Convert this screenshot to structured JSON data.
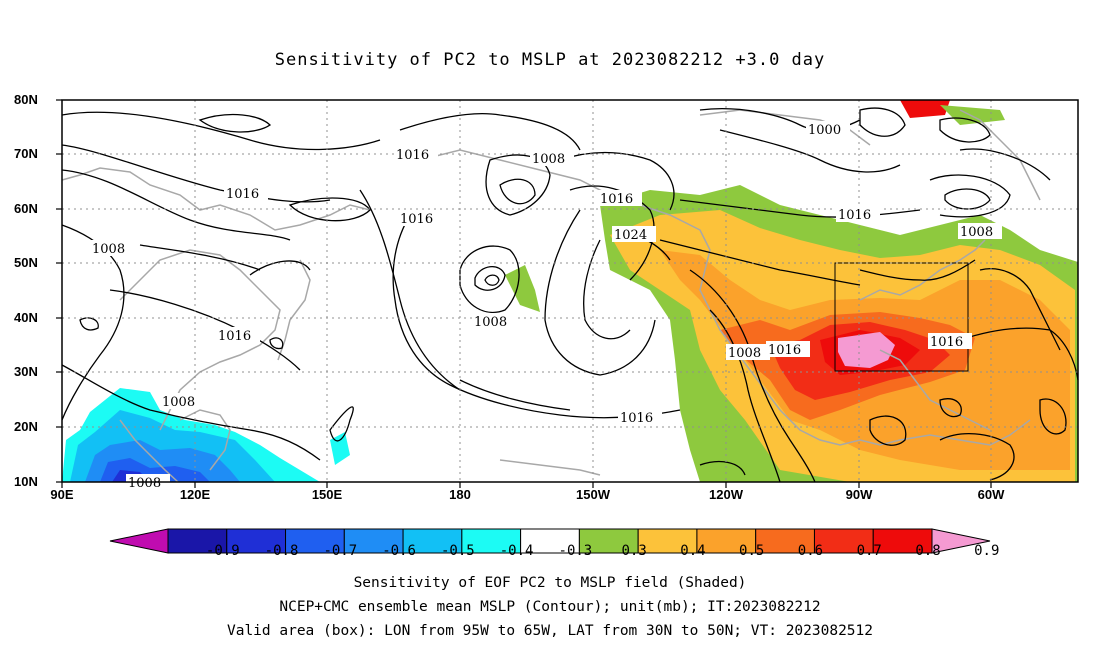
{
  "title": "Sensitivity of PC2 to MSLP at 2023082212 +3.0 day",
  "lat_labels": [
    "80N",
    "70N",
    "60N",
    "50N",
    "40N",
    "30N",
    "20N",
    "10N"
  ],
  "lon_labels": [
    "90E",
    "120E",
    "150E",
    "180",
    "150W",
    "120W",
    "90W",
    "60W"
  ],
  "contour_labels": [
    "1016",
    "1008",
    "1016",
    "1016",
    "1008",
    "1016",
    "1016",
    "1000",
    "1024",
    "1016",
    "1008",
    "1008",
    "1008",
    "1008",
    "1016",
    "1016",
    "1016",
    "1008",
    "1008"
  ],
  "colorbar": {
    "labels": [
      "-0.9",
      "-0.8",
      "-0.7",
      "-0.6",
      "-0.5",
      "-0.4",
      "-0.3",
      "0.3",
      "0.4",
      "0.5",
      "0.6",
      "0.7",
      "0.8",
      "0.9"
    ],
    "colors": [
      "#c00cb0",
      "#1a16a8",
      "#1f2fd6",
      "#1f5ff0",
      "#1f8df5",
      "#12c0f5",
      "#1cfbf4",
      "#ffffff",
      "#8ec93e",
      "#fcc23a",
      "#fba22b",
      "#f76b1e",
      "#f22d16",
      "#ee0b0b",
      "#f59ad2"
    ]
  },
  "captions": [
    "Sensitivity of EOF PC2 to MSLP field (Shaded)",
    "NCEP+CMC ensemble mean MSLP (Contour); unit(mb); IT:2023082212",
    "Valid area (box): LON from 95W to 65W, LAT from 30N to 50N; VT: 2023082512"
  ]
}
